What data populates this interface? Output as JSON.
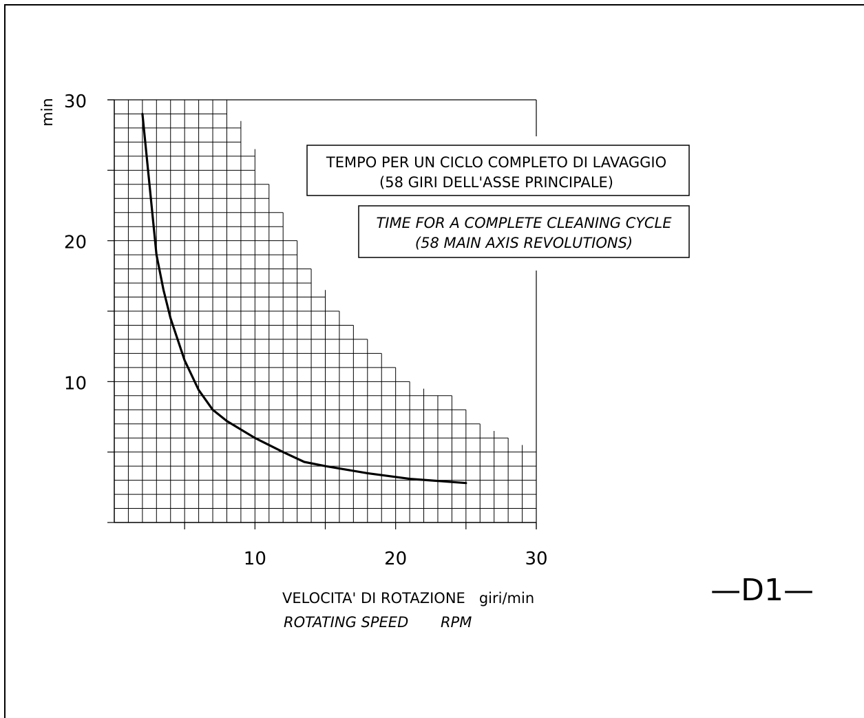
{
  "chart_data": {
    "type": "line",
    "x_ticks": [
      "10",
      "20",
      "30"
    ],
    "y_ticks": [
      "10",
      "20",
      "30"
    ],
    "xlim": [
      0,
      30
    ],
    "ylim": [
      0,
      30
    ],
    "ylabel": "min",
    "xlabel_it": "VELOCITA' DI ROTAZIONE   giri/min",
    "xlabel_en": "ROTATING SPEED       RPM",
    "legend_it": [
      "TEMPO PER UN CICLO COMPLETO DI LAVAGGIO",
      "(58 GIRI DELL'ASSE PRINCIPALE)"
    ],
    "legend_en": [
      "TIME FOR A COMPLETE CLEANING CYCLE",
      "(58 MAIN AXIS REVOLUTIONS)"
    ],
    "grid": true,
    "series": [
      {
        "x": [
          2,
          2.5,
          3,
          3.5,
          4,
          5,
          6,
          7,
          8,
          10,
          12,
          13.5,
          15,
          18,
          21,
          25
        ],
        "y": [
          29,
          24,
          19,
          16.5,
          14.5,
          11.5,
          9.4,
          8,
          7.2,
          6,
          5,
          4.3,
          4,
          3.5,
          3.1,
          2.8
        ]
      }
    ]
  },
  "drawing_tag": "—D1—",
  "colors": {
    "line": "#000000",
    "grid": "#000000",
    "background": "#ffffff"
  }
}
